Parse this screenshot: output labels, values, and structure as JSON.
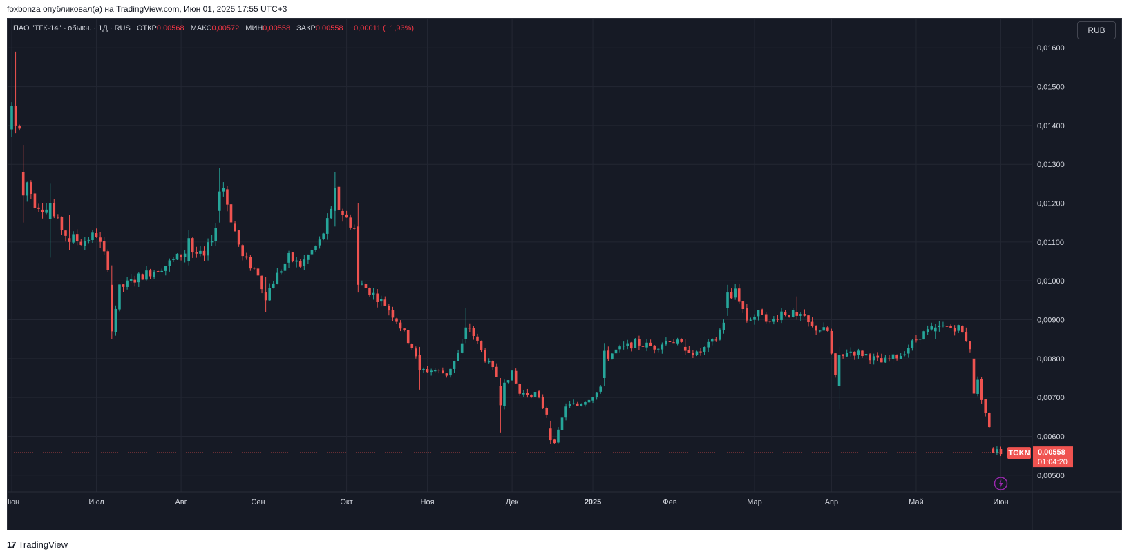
{
  "header": {
    "published_by": "foxbonza опубликовал(а) на TradingView.com, Июн 01, 2025 17:55 UTC+3"
  },
  "legend": {
    "symbol": "ПАО \"ТГК-14\" - обыкн. · 1Д · RUS",
    "open_label": "ОТКР",
    "open_value": "0,00568",
    "high_label": "МАКС",
    "high_value": "0,00572",
    "low_label": "МИН",
    "low_value": "0,00558",
    "close_label": "ЗАКР",
    "close_value": "0,00558",
    "change": "−0,00011 (−1,93%)"
  },
  "currency": "RUB",
  "price_tag": {
    "ticker": "TGKN",
    "price": "0,00558",
    "countdown": "01:04:20"
  },
  "colors": {
    "up": "#26a69a",
    "down": "#ef5350",
    "background": "#161a25",
    "grid": "#232733",
    "axis_text": "#d1d4dc",
    "bolt": "#9c27b0"
  },
  "icons": [
    "lightning-icon",
    "tradingview-logo-icon"
  ],
  "footer": {
    "brand": "TradingView"
  },
  "chart_data": {
    "type": "candlestick",
    "y_ticks": [
      "0,01600",
      "0,01500",
      "0,01400",
      "0,01300",
      "0,01200",
      "0,01100",
      "0,01000",
      "0,00900",
      "0,00800",
      "0,00700",
      "0,00600",
      "0,00500"
    ],
    "y_tick_values": [
      0.016,
      0.015,
      0.014,
      0.013,
      0.012,
      0.011,
      0.01,
      0.009,
      0.008,
      0.007,
      0.006,
      0.005
    ],
    "ylim": [
      0.00457,
      0.01675
    ],
    "x_ticks": [
      "Июн",
      "Июл",
      "Авг",
      "Сен",
      "Окт",
      "Ноя",
      "Дек",
      "2025",
      "Фев",
      "Мар",
      "Апр",
      "Май",
      "Июн"
    ],
    "x_tick_bars": [
      0,
      22,
      44,
      64,
      87,
      108,
      130,
      151,
      171,
      193,
      213,
      235,
      257
    ],
    "bars_count": 265,
    "last_price": 0.00558,
    "ohlc_sampled": [
      {
        "bar": 0,
        "o": 0.0139,
        "h": 0.0146,
        "l": 0.0137,
        "c": 0.0145
      },
      {
        "bar": 1,
        "o": 0.0145,
        "h": 0.0159,
        "l": 0.0138,
        "c": 0.014
      },
      {
        "bar": 3,
        "o": 0.0128,
        "h": 0.0135,
        "l": 0.0115,
        "c": 0.0122
      },
      {
        "bar": 10,
        "o": 0.0116,
        "h": 0.0125,
        "l": 0.0106,
        "c": 0.012
      },
      {
        "bar": 15,
        "o": 0.0111,
        "h": 0.0117,
        "l": 0.0108,
        "c": 0.011
      },
      {
        "bar": 26,
        "o": 0.0099,
        "h": 0.0104,
        "l": 0.0085,
        "c": 0.0087
      },
      {
        "bar": 46,
        "o": 0.0105,
        "h": 0.0113,
        "l": 0.0104,
        "c": 0.0111
      },
      {
        "bar": 54,
        "o": 0.0118,
        "h": 0.0129,
        "l": 0.0115,
        "c": 0.0123
      },
      {
        "bar": 66,
        "o": 0.0097,
        "h": 0.0101,
        "l": 0.0092,
        "c": 0.0095
      },
      {
        "bar": 84,
        "o": 0.0118,
        "h": 0.0128,
        "l": 0.0114,
        "c": 0.0124
      },
      {
        "bar": 90,
        "o": 0.0114,
        "h": 0.012,
        "l": 0.0097,
        "c": 0.0099
      },
      {
        "bar": 106,
        "o": 0.0081,
        "h": 0.0083,
        "l": 0.0072,
        "c": 0.0077
      },
      {
        "bar": 118,
        "o": 0.0085,
        "h": 0.0093,
        "l": 0.0084,
        "c": 0.0088
      },
      {
        "bar": 127,
        "o": 0.0073,
        "h": 0.0075,
        "l": 0.0061,
        "c": 0.0068
      },
      {
        "bar": 140,
        "o": 0.0062,
        "h": 0.0064,
        "l": 0.0058,
        "c": 0.0059
      },
      {
        "bar": 154,
        "o": 0.0075,
        "h": 0.0084,
        "l": 0.0073,
        "c": 0.0082
      },
      {
        "bar": 175,
        "o": 0.0083,
        "h": 0.0085,
        "l": 0.0081,
        "c": 0.0082
      },
      {
        "bar": 186,
        "o": 0.0093,
        "h": 0.0099,
        "l": 0.0091,
        "c": 0.0097
      },
      {
        "bar": 204,
        "o": 0.0092,
        "h": 0.0096,
        "l": 0.009,
        "c": 0.0091
      },
      {
        "bar": 215,
        "o": 0.0073,
        "h": 0.0083,
        "l": 0.0067,
        "c": 0.0081
      },
      {
        "bar": 240,
        "o": 0.0087,
        "h": 0.0089,
        "l": 0.0085,
        "c": 0.0088
      },
      {
        "bar": 250,
        "o": 0.008,
        "h": 0.008,
        "l": 0.0069,
        "c": 0.0071
      },
      {
        "bar": 255,
        "o": 0.00568,
        "h": 0.00572,
        "l": 0.00558,
        "c": 0.00558
      }
    ],
    "anchors": [
      [
        0,
        0.014
      ],
      [
        1,
        0.015
      ],
      [
        3,
        0.0128
      ],
      [
        6,
        0.012
      ],
      [
        10,
        0.0118
      ],
      [
        14,
        0.0112
      ],
      [
        18,
        0.011
      ],
      [
        22,
        0.0112
      ],
      [
        25,
        0.0104
      ],
      [
        26,
        0.0088
      ],
      [
        28,
        0.0098
      ],
      [
        33,
        0.0101
      ],
      [
        40,
        0.0104
      ],
      [
        46,
        0.0108
      ],
      [
        50,
        0.0106
      ],
      [
        53,
        0.0114
      ],
      [
        55,
        0.0124
      ],
      [
        57,
        0.0116
      ],
      [
        60,
        0.0106
      ],
      [
        64,
        0.0102
      ],
      [
        66,
        0.0096
      ],
      [
        68,
        0.01
      ],
      [
        72,
        0.0106
      ],
      [
        75,
        0.0104
      ],
      [
        80,
        0.011
      ],
      [
        84,
        0.012
      ],
      [
        87,
        0.0116
      ],
      [
        90,
        0.0112
      ],
      [
        91,
        0.0099
      ],
      [
        97,
        0.0094
      ],
      [
        100,
        0.009
      ],
      [
        104,
        0.0083
      ],
      [
        106,
        0.0077
      ],
      [
        110,
        0.0077
      ],
      [
        113,
        0.0076
      ],
      [
        116,
        0.0081
      ],
      [
        119,
        0.0088
      ],
      [
        121,
        0.0084
      ],
      [
        123,
        0.008
      ],
      [
        127,
        0.0074
      ],
      [
        130,
        0.0076
      ],
      [
        132,
        0.0071
      ],
      [
        136,
        0.0071
      ],
      [
        139,
        0.0066
      ],
      [
        141,
        0.0059
      ],
      [
        142,
        0.0061
      ],
      [
        144,
        0.0068
      ],
      [
        147,
        0.0068
      ],
      [
        150,
        0.007
      ],
      [
        153,
        0.0072
      ],
      [
        154,
        0.008
      ],
      [
        157,
        0.0082
      ],
      [
        162,
        0.0084
      ],
      [
        167,
        0.0083
      ],
      [
        171,
        0.0085
      ],
      [
        175,
        0.0083
      ],
      [
        178,
        0.0081
      ],
      [
        183,
        0.0085
      ],
      [
        186,
        0.0092
      ],
      [
        188,
        0.0098
      ],
      [
        191,
        0.009
      ],
      [
        195,
        0.0092
      ],
      [
        197,
        0.0089
      ],
      [
        200,
        0.0092
      ],
      [
        205,
        0.0091
      ],
      [
        208,
        0.0088
      ],
      [
        212,
        0.0087
      ],
      [
        214,
        0.0075
      ],
      [
        215,
        0.0079
      ],
      [
        217,
        0.0082
      ],
      [
        222,
        0.0081
      ],
      [
        226,
        0.0079
      ],
      [
        231,
        0.0081
      ],
      [
        236,
        0.0086
      ],
      [
        240,
        0.0088
      ],
      [
        246,
        0.0088
      ],
      [
        248,
        0.0085
      ],
      [
        249,
        0.0083
      ],
      [
        250,
        0.0078
      ],
      [
        252,
        0.007
      ],
      [
        254,
        0.0062
      ],
      [
        256,
        0.0057
      ],
      [
        257,
        0.00558
      ]
    ]
  }
}
